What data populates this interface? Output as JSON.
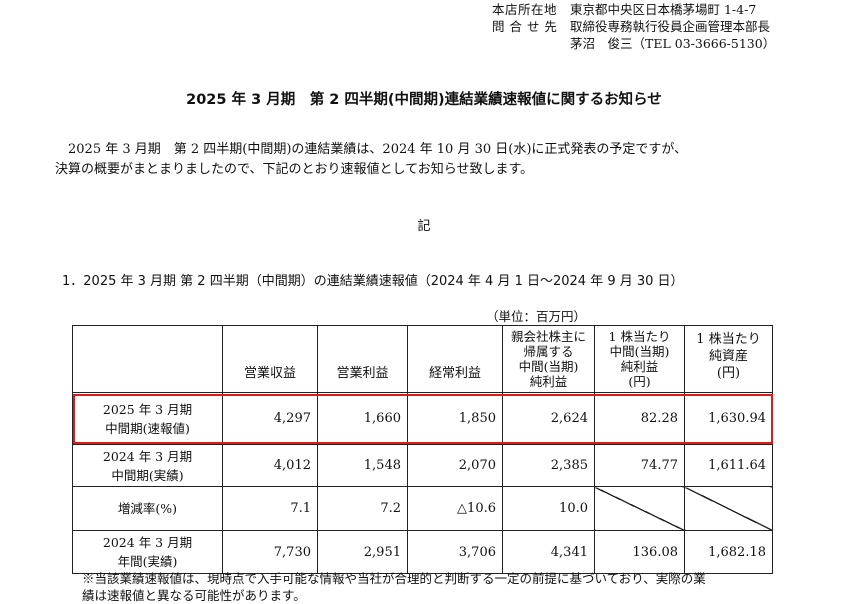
{
  "contact": {
    "rows": [
      {
        "label": "本店所在地",
        "value": "東京都中央区日本橋茅場町 1-4-7"
      },
      {
        "label": "問 合 せ 先",
        "value": "取締役専務執行役員企画管理本部長"
      },
      {
        "label": "",
        "value": "茅沼　俊三（TEL 03-3666-5130）"
      }
    ]
  },
  "title": "2025 年 3 月期　第 2 四半期(中間期)連結業績速報値に関するお知らせ",
  "body": {
    "line1": "2025 年 3 月期　第 2 四半期(中間期)の連結業績は、2024 年 10 月 30 日(水)に正式発表の予定ですが、",
    "line2": "決算の概要がまとまりましたので、下記のとおり速報値としてお知らせ致します。"
  },
  "ki": "記",
  "section_heading": "1．2025 年 3 月期 第 2 四半期（中間期）の連結業績速報値（2024 年 4 月 1 日～2024 年 9 月 30 日）",
  "unit": "（単位：百万円）",
  "table": {
    "headers": {
      "revenue": "営業収益",
      "operating_income": "営業利益",
      "ordinary_income": "経常利益",
      "net_income": [
        "親会社株主に",
        "帰属する",
        "中間(当期)",
        "純利益"
      ],
      "eps": [
        "1 株当たり",
        "中間(当期)",
        "純利益",
        "(円)"
      ],
      "bps": [
        "1 株当たり",
        "純資産",
        "(円)"
      ]
    },
    "rows": [
      {
        "label": [
          "2025 年 3 月期",
          "中間期(速報値)"
        ],
        "revenue": "4,297",
        "operating_income": "1,660",
        "ordinary_income": "1,850",
        "net_income": "2,624",
        "eps": "82.28",
        "bps": "1,630.94",
        "highlighted": true
      },
      {
        "label": [
          "2024 年 3 月期",
          "中間期(実績)"
        ],
        "revenue": "4,012",
        "operating_income": "1,548",
        "ordinary_income": "2,070",
        "net_income": "2,385",
        "eps": "74.77",
        "bps": "1,611.64"
      },
      {
        "label": [
          "増減率(%)"
        ],
        "revenue": "7.1",
        "operating_income": "7.2",
        "ordinary_income": "△10.6",
        "net_income": "10.0",
        "eps": "",
        "bps": ""
      },
      {
        "label": [
          "2024 年 3 月期",
          "年間(実績)"
        ],
        "revenue": "7,730",
        "operating_income": "2,951",
        "ordinary_income": "3,706",
        "net_income": "4,341",
        "eps": "136.08",
        "bps": "1,682.18"
      }
    ]
  },
  "highlight_color": "#e01a1a",
  "footnote": {
    "line1": "※当該業績速報値は、現時点で入手可能な情報や当社が合理的と判断する一定の前提に基づいており、実際の業",
    "line2": "績は速報値と異なる可能性があります。"
  }
}
